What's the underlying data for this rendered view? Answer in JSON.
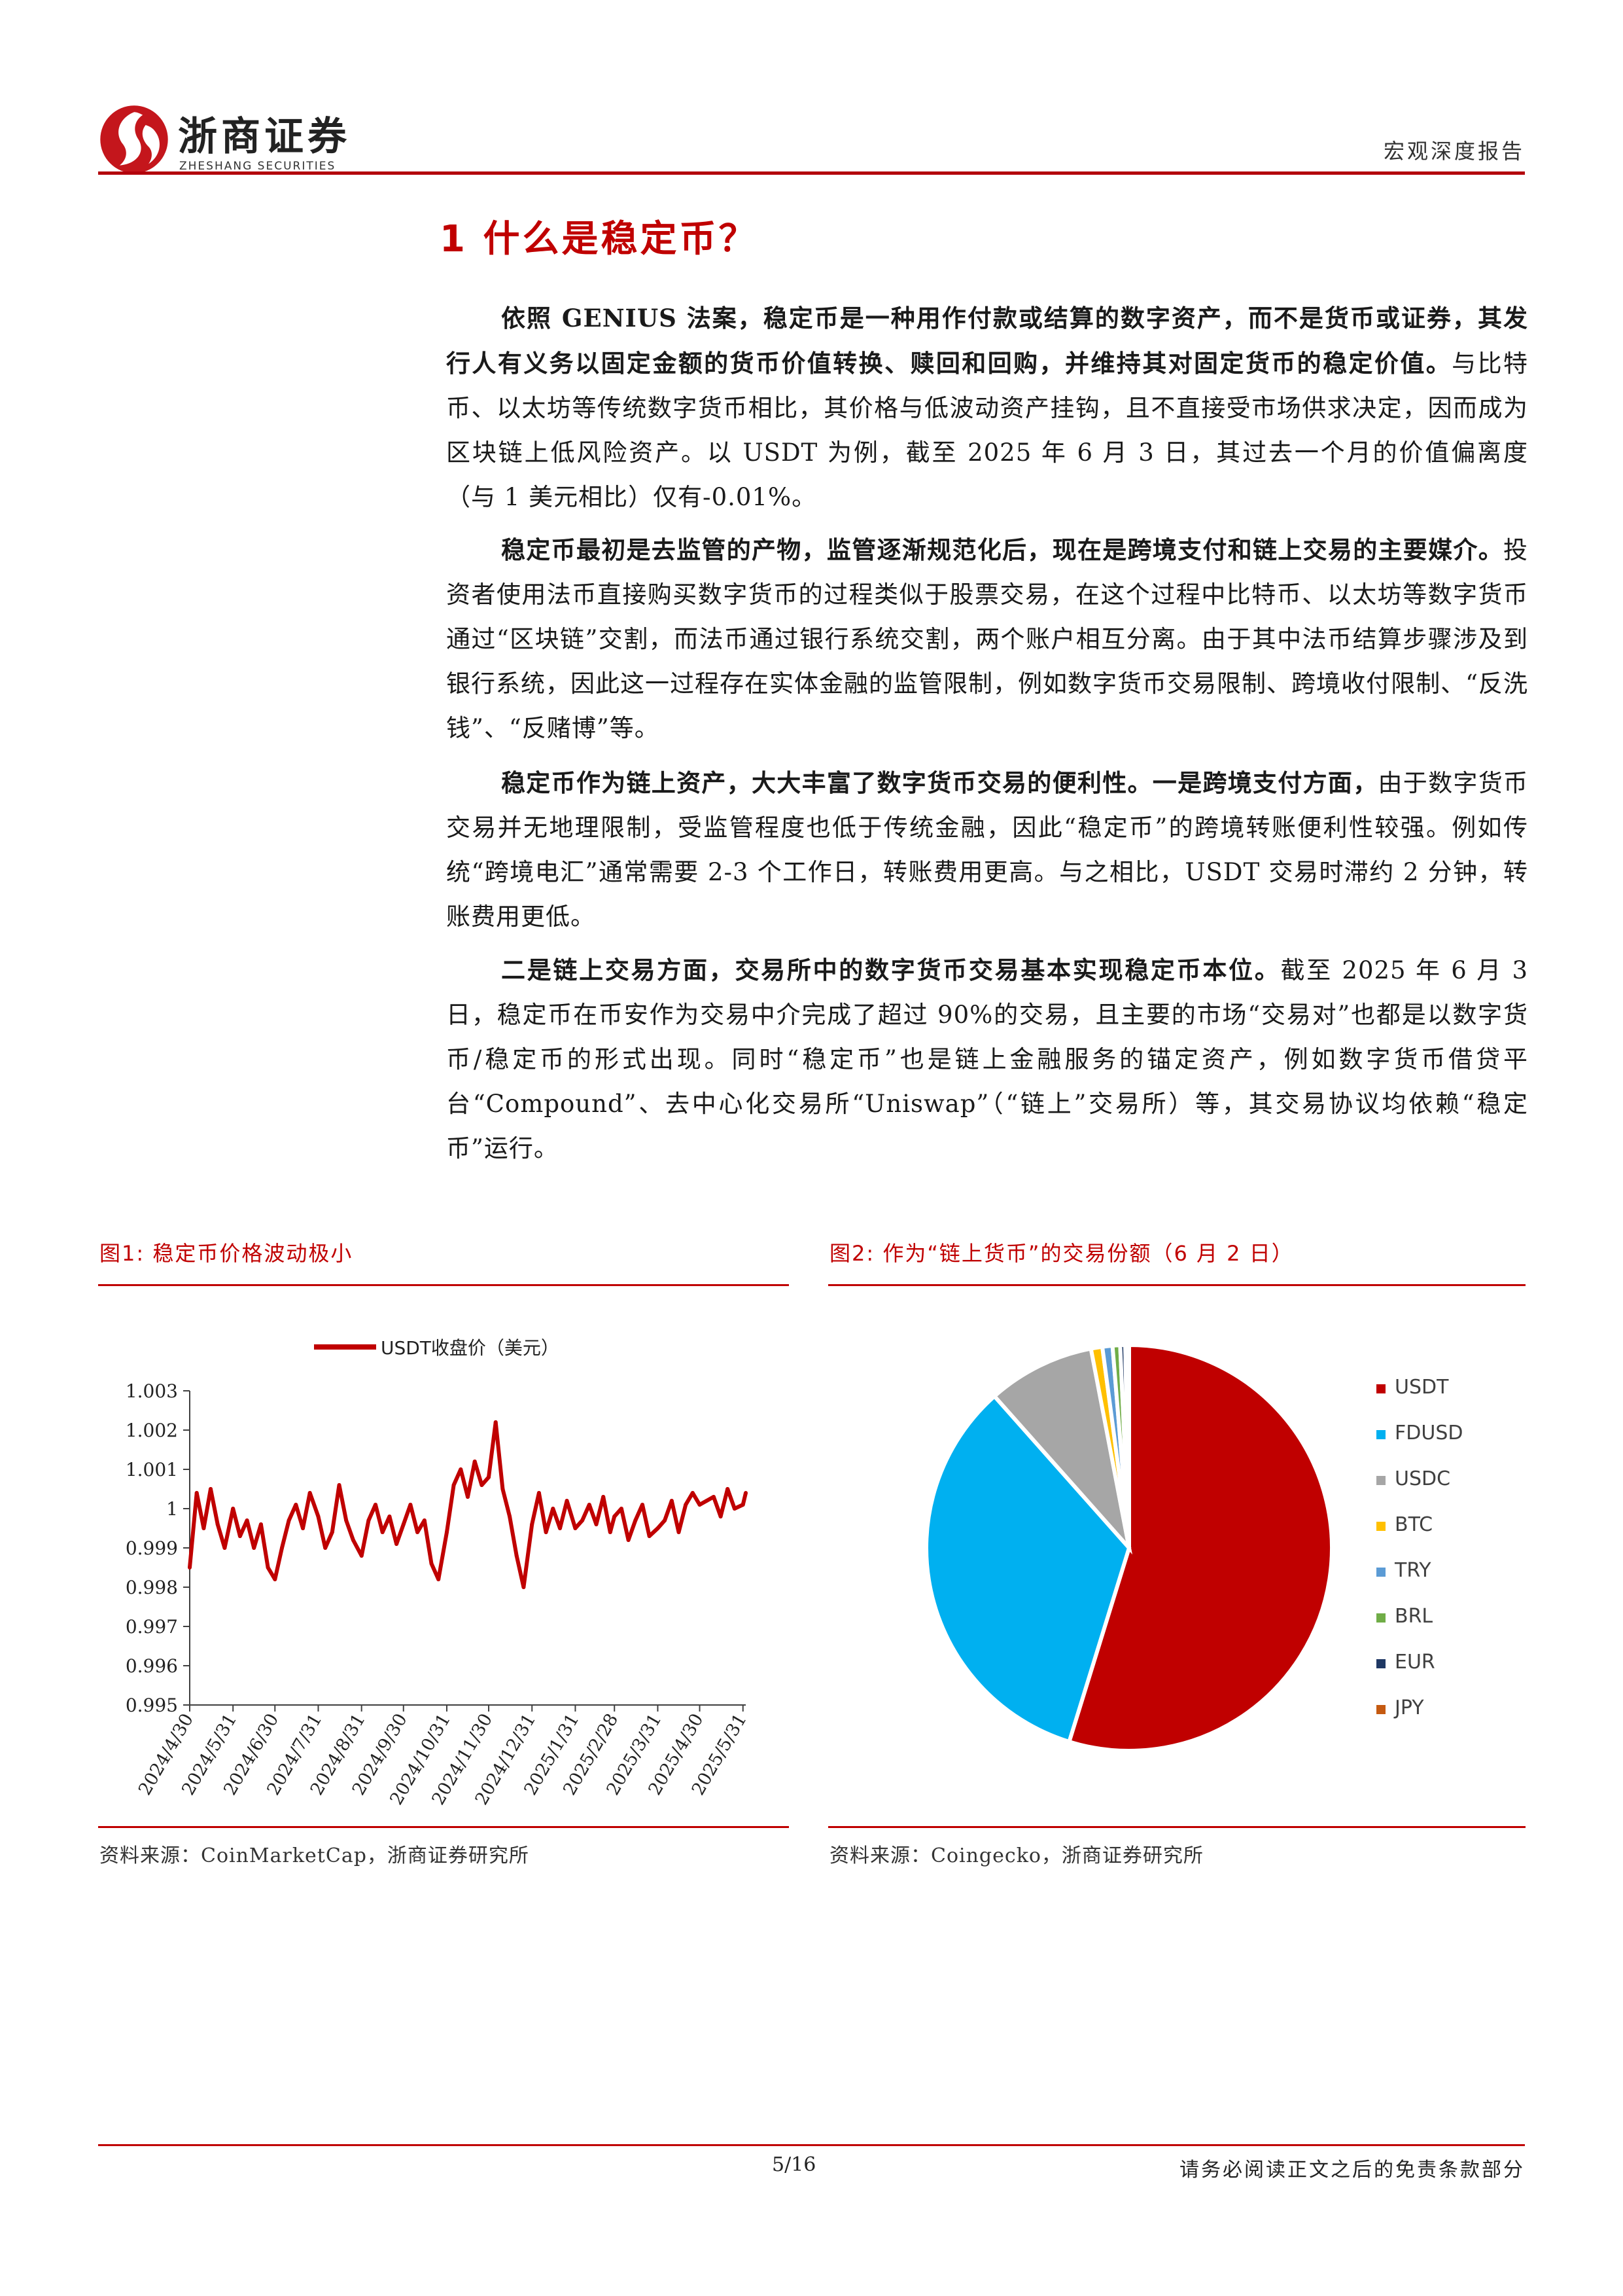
{
  "header": {
    "company_name": "浙商证券",
    "company_subtitle": "ZHESHANG SECURITIES",
    "doc_type": "宏观深度报告"
  },
  "section": {
    "title": "1 什么是稳定币？"
  },
  "paragraphs": [
    {
      "bold": "依照 GENIUS 法案，稳定币是一种用作付款或结算的数字资产，而不是货币或证券，其发行人有义务以固定金额的货币价值转换、赎回和回购，并维持其对固定货币的稳定价值。",
      "text": "与比特币、以太坊等传统数字货币相比，其价格与低波动资产挂钩，且不直接受市场供求决定，因而成为区块链上低风险资产。以 USDT 为例，截至 2025 年 6 月 3 日，其过去一个月的价值偏离度（与 1 美元相比）仅有-0.01%。"
    },
    {
      "bold": "稳定币最初是去监管的产物，监管逐渐规范化后，现在是跨境支付和链上交易的主要媒介。",
      "text": "投资者使用法币直接购买数字货币的过程类似于股票交易，在这个过程中比特币、以太坊等数字货币通过“区块链”交割，而法币通过银行系统交割，两个账户相互分离。由于其中法币结算步骤涉及到银行系统，因此这一过程存在实体金融的监管限制，例如数字货币交易限制、跨境收付限制、“反洗钱”、“反赌博”等。"
    },
    {
      "bold": "稳定币作为链上资产，大大丰富了数字货币交易的便利性。一是跨境支付方面，",
      "text": "由于数字货币交易并无地理限制，受监管程度也低于传统金融，因此“稳定币”的跨境转账便利性较强。例如传统“跨境电汇”通常需要 2-3 个工作日，转账费用更高。与之相比，USDT 交易时滞约 2 分钟，转账费用更低。"
    },
    {
      "bold": "二是链上交易方面，交易所中的数字货币交易基本实现稳定币本位。",
      "text": "截至 2025 年 6 月 3 日，稳定币在币安作为交易中介完成了超过 90%的交易，且主要的市场“交易对”也都是以数字货币/稳定币的形式出现。同时“稳定币”也是链上金融服务的锚定资产，例如数字货币借贷平台“Compound”、去中心化交易所“Uniswap”（“链上”交易所）等，其交易协议均依赖“稳定币”运行。"
    }
  ],
  "figures": [
    {
      "caption": "图1:  稳定币价格波动极小",
      "source": "资料来源：CoinMarketCap，浙商证券研究所"
    },
    {
      "caption": "图2:  作为“链上货币”的交易份额（6 月 2 日）",
      "source": "资料来源：Coingecko，浙商证券研究所"
    }
  ],
  "chart_data": [
    {
      "type": "line",
      "title": "",
      "xlabel": "",
      "ylabel": "",
      "legend_position": "top",
      "grid": false,
      "color": "#c00000",
      "ylim": [
        0.995,
        1.003
      ],
      "y_ticks": [
        "1.003",
        "1.002",
        "1.001",
        "1",
        "0.999",
        "0.998",
        "0.997",
        "0.996",
        "0.995"
      ],
      "x_ticks": [
        "2024/4/30",
        "2024/5/31",
        "2024/6/30",
        "2024/7/31",
        "2024/8/31",
        "2024/9/30",
        "2024/10/31",
        "2024/11/30",
        "2024/12/31",
        "2025/1/31",
        "2025/2/28",
        "2025/3/31",
        "2025/4/30",
        "2025/5/31"
      ],
      "series": [
        {
          "name": "USDT收盘价（美元）",
          "x": [
            "2024/4/30",
            "2024/5/5",
            "2024/5/10",
            "2024/5/15",
            "2024/5/20",
            "2024/5/25",
            "2024/5/31",
            "2024/6/5",
            "2024/6/10",
            "2024/6/15",
            "2024/6/20",
            "2024/6/25",
            "2024/6/30",
            "2024/7/5",
            "2024/7/10",
            "2024/7/15",
            "2024/7/20",
            "2024/7/25",
            "2024/7/31",
            "2024/8/5",
            "2024/8/10",
            "2024/8/15",
            "2024/8/20",
            "2024/8/25",
            "2024/8/31",
            "2024/9/5",
            "2024/9/10",
            "2024/9/15",
            "2024/9/20",
            "2024/9/25",
            "2024/9/30",
            "2024/10/5",
            "2024/10/10",
            "2024/10/15",
            "2024/10/20",
            "2024/10/25",
            "2024/10/31",
            "2024/11/5",
            "2024/11/10",
            "2024/11/15",
            "2024/11/20",
            "2024/11/25",
            "2024/11/30",
            "2024/12/5",
            "2024/12/10",
            "2024/12/15",
            "2024/12/20",
            "2024/12/25",
            "2024/12/31",
            "2025/1/5",
            "2025/1/10",
            "2025/1/15",
            "2025/1/20",
            "2025/1/25",
            "2025/1/31",
            "2025/2/5",
            "2025/2/10",
            "2025/2/15",
            "2025/2/20",
            "2025/2/25",
            "2025/2/28",
            "2025/3/5",
            "2025/3/10",
            "2025/3/15",
            "2025/3/20",
            "2025/3/25",
            "2025/3/31",
            "2025/4/5",
            "2025/4/10",
            "2025/4/15",
            "2025/4/20",
            "2025/4/25",
            "2025/4/30",
            "2025/5/5",
            "2025/5/10",
            "2025/5/15",
            "2025/5/20",
            "2025/5/25",
            "2025/5/31",
            "2025/6/2"
          ],
          "y": [
            0.9985,
            1.0004,
            0.9995,
            1.0005,
            0.9996,
            0.999,
            1.0,
            0.9993,
            0.9997,
            0.999,
            0.9996,
            0.9985,
            0.9982,
            0.999,
            0.9997,
            1.0001,
            0.9995,
            1.0004,
            0.9998,
            0.999,
            0.9994,
            1.0006,
            0.9997,
            0.9992,
            0.9988,
            0.9997,
            1.0001,
            0.9994,
            0.9998,
            0.9991,
            0.9996,
            1.0001,
            0.9994,
            0.9997,
            0.9986,
            0.9982,
            0.9994,
            1.0006,
            1.001,
            1.0003,
            1.0012,
            1.0006,
            1.0008,
            1.0022,
            1.0005,
            0.9998,
            0.9988,
            0.998,
            0.9996,
            1.0004,
            0.9994,
            1.0,
            0.9995,
            1.0002,
            0.9995,
            0.9997,
            1.0001,
            0.9996,
            1.0003,
            0.9994,
            0.9998,
            1.0,
            0.9992,
            0.9997,
            1.0001,
            0.9993,
            0.9995,
            0.9997,
            1.0002,
            0.9994,
            1.0001,
            1.0004,
            1.0001,
            1.0002,
            1.0003,
            0.9998,
            1.0005,
            1.0,
            1.0001,
            1.0004
          ]
        }
      ]
    },
    {
      "type": "pie",
      "title": "",
      "legend_position": "right",
      "labels": [
        "USDT",
        "FDUSD",
        "USDC",
        "BTC",
        "TRY",
        "BRL",
        "EUR",
        "JPY"
      ],
      "values": [
        54.5,
        33.5,
        8.5,
        0.9,
        0.8,
        0.6,
        0.4,
        0.3
      ],
      "unit": "%",
      "colors": [
        "#c00000",
        "#00b0f0",
        "#a6a6a6",
        "#ffc000",
        "#5b9bd5",
        "#70ad47",
        "#1f3864",
        "#c55a11"
      ]
    }
  ],
  "footer": {
    "page_number": "5/16",
    "disclaimer": "请务必阅读正文之后的免责条款部分"
  }
}
